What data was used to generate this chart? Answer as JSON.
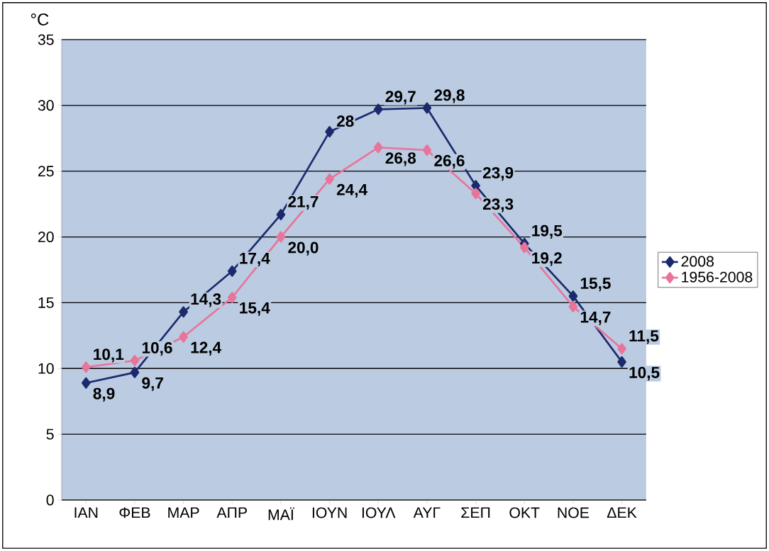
{
  "chart_data": {
    "type": "line",
    "ylabel": "°C",
    "categories": [
      "ΙΑΝ",
      "ΦΕΒ",
      "ΜΑΡ",
      "ΑΠΡ",
      "ΜΑΪ",
      "ΙΟΥΝ",
      "ΙΟΥΛ",
      "ΑΥΓ",
      "ΣΕΠ",
      "ΟΚΤ",
      "ΝΟΕ",
      "ΔΕΚ"
    ],
    "series": [
      {
        "name": "2008",
        "color": "#1a2a6c",
        "values": [
          8.9,
          9.7,
          14.3,
          17.4,
          21.7,
          28,
          29.7,
          29.8,
          23.9,
          19.5,
          15.5,
          10.5
        ],
        "value_labels": [
          "8,9",
          "9,7",
          "14,3",
          "17,4",
          "21,7",
          "28",
          "29,7",
          "29,8",
          "23,9",
          "19,5",
          "15,5",
          "10,5"
        ]
      },
      {
        "name": "1956-2008",
        "color": "#e8749a",
        "values": [
          10.1,
          10.6,
          12.4,
          15.4,
          20.0,
          24.4,
          26.8,
          26.6,
          23.3,
          19.2,
          14.7,
          11.5
        ],
        "value_labels": [
          "10,1",
          "10,6",
          "12,4",
          "15,4",
          "20,0",
          "24,4",
          "26,8",
          "26,6",
          "23,3",
          "19,2",
          "14,7",
          "11,5"
        ]
      }
    ],
    "ylim": [
      0,
      35
    ],
    "yticks": [
      0,
      5,
      10,
      15,
      20,
      25,
      30,
      35
    ],
    "grid": "y",
    "legend": "right",
    "marker": "diamond",
    "line_style": "solid"
  }
}
